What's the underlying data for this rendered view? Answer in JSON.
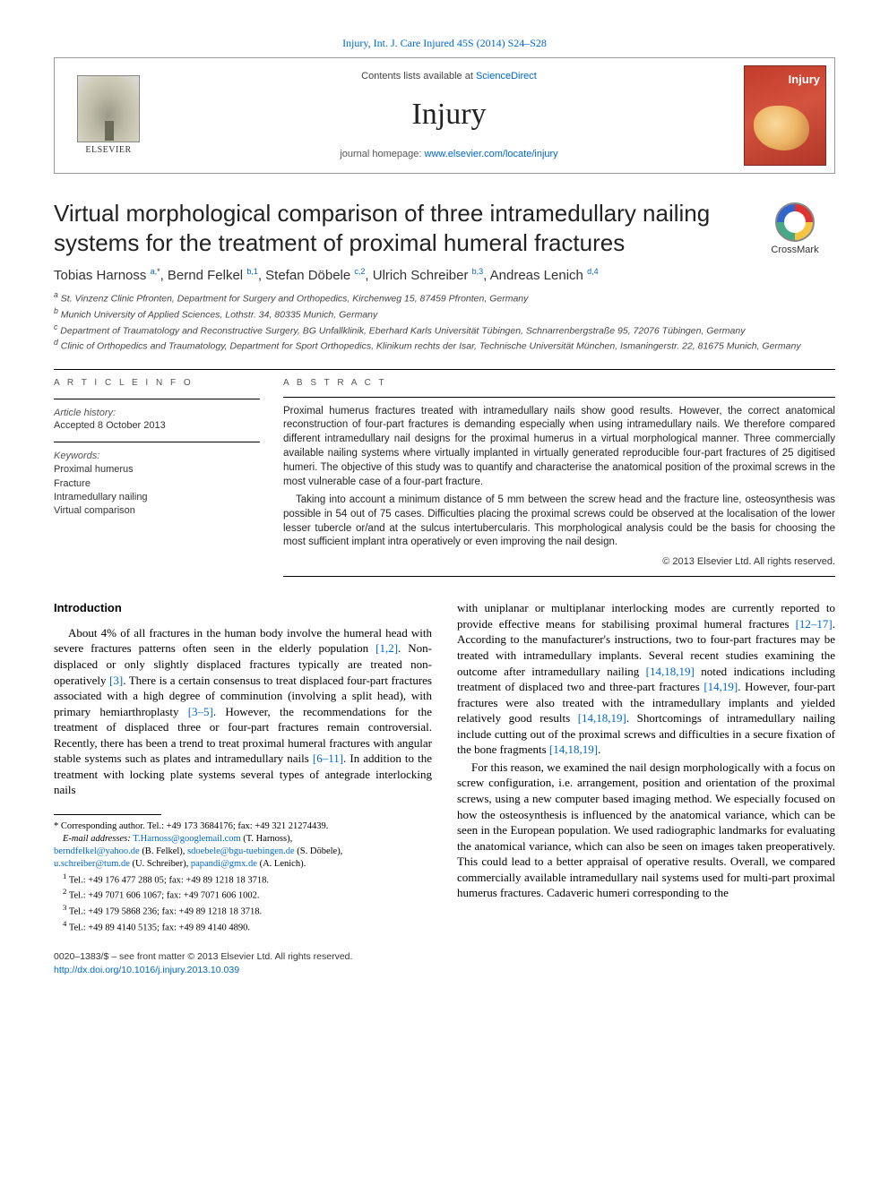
{
  "colors": {
    "link": "#0066cc",
    "text": "#000000",
    "muted": "#555555",
    "bg": "#ffffff",
    "cover_red": "#c43b2a",
    "rule": "#000000"
  },
  "typography": {
    "body_family": "Times New Roman",
    "ui_family": "Arial",
    "title_size_pt": 20,
    "author_size_pt": 11,
    "abstract_size_pt": 9,
    "body_size_pt": 10
  },
  "citation": "Injury, Int. J. Care Injured 45S (2014) S24–S28",
  "header": {
    "contents_prefix": "Contents lists available at ",
    "contents_link": "ScienceDirect",
    "journal": "Injury",
    "homepage_prefix": "journal homepage: ",
    "homepage_url": "www.elsevier.com/locate/injury",
    "publisher_label": "ELSEVIER",
    "cover_title": "Injury"
  },
  "crossmark": "CrossMark",
  "title": "Virtual morphological comparison of three intramedullary nailing systems for the treatment of proximal humeral fractures",
  "authors_html": "Tobias Harnoss <sup>a,</sup><sup class='black'>*</sup>, Bernd Felkel <sup>b,1</sup>, Stefan Döbele <sup>c,2</sup>, Ulrich Schreiber <sup>b,3</sup>, Andreas Lenich <sup>d,4</sup>",
  "affiliations": {
    "a": "St. Vinzenz Clinic Pfronten, Department for Surgery and Orthopedics, Kirchenweg 15, 87459 Pfronten, Germany",
    "b": "Munich University of Applied Sciences, Lothstr. 34, 80335 Munich, Germany",
    "c": "Department of Traumatology and Reconstructive Surgery, BG Unfallklinik, Eberhard Karls Universität Tübingen, Schnarrenbergstraße 95, 72076 Tübingen, Germany",
    "d": "Clinic of Orthopedics and Traumatology, Department for Sport Orthopedics, Klinikum rechts der Isar, Technische Universität München, Ismaningerstr. 22, 81675 Munich, Germany"
  },
  "article_info": {
    "heading": "A R T I C L E  I N F O",
    "history_label": "Article history:",
    "accepted": "Accepted 8 October 2013",
    "keywords_label": "Keywords:",
    "keywords": [
      "Proximal humerus",
      "Fracture",
      "Intramedullary nailing",
      "Virtual comparison"
    ]
  },
  "abstract": {
    "heading": "A B S T R A C T",
    "p1": "Proximal humerus fractures treated with intramedullary nails show good results. However, the correct anatomical reconstruction of four-part fractures is demanding especially when using intramedullary nails. We therefore compared different intramedullary nail designs for the proximal humerus in a virtual morphological manner. Three commercially available nailing systems where virtually implanted in virtually generated reproducible four-part fractures of 25 digitised humeri. The objective of this study was to quantify and characterise the anatomical position of the proximal screws in the most vulnerable case of a four-part fracture.",
    "p2": "Taking into account a minimum distance of 5 mm between the screw head and the fracture line, osteosynthesis was possible in 54 out of 75 cases. Difficulties placing the proximal screws could be observed at the localisation of the lower lesser tubercle or/and at the sulcus intertubercularis. This morphological analysis could be the basis for choosing the most sufficient implant intra operatively or even improving the nail design.",
    "copyright": "© 2013 Elsevier Ltd. All rights reserved."
  },
  "introduction": {
    "heading": "Introduction",
    "p1a": "About 4% of all fractures in the human body involve the humeral head with severe fractures patterns often seen in the elderly population ",
    "r1": "[1,2]",
    "p1b": ". Non-displaced or only slightly displaced fractures typically are treated non-operatively ",
    "r2": "[3]",
    "p1c": ". There is a certain consensus to treat displaced four-part fractures associated with a high degree of comminution (involving a split head), with primary hemiarthroplasty ",
    "r3": "[3–5]",
    "p1d": ". However, the recommendations for the treatment of displaced three or four-part fractures remain controversial. Recently, there has been a trend to treat proximal humeral fractures with angular stable systems such as plates and intramedullary nails ",
    "r4": "[6–11]",
    "p1e": ". In addition to the treatment with locking plate systems several types of antegrade interlocking nails",
    "p2a": "with uniplanar or multiplanar interlocking modes are currently reported to provide effective means for stabilising proximal humeral fractures ",
    "r5": "[12–17]",
    "p2b": ". According to the manufacturer's instructions, two to four-part fractures may be treated with intramedullary implants. Several recent studies examining the outcome after intramedullary nailing ",
    "r6": "[14,18,19]",
    "p2c": " noted indications including treatment of displaced two and three-part fractures ",
    "r7": "[14,19]",
    "p2d": ". However, four-part fractures were also treated with the intramedullary implants and yielded relatively good results ",
    "r8": "[14,18,19]",
    "p2e": ". Shortcomings of intramedullary nailing include cutting out of the proximal screws and difficulties in a secure fixation of the bone fragments ",
    "r9": "[14,18,19]",
    "p2f": ".",
    "p3": "For this reason, we examined the nail design morphologically with a focus on screw configuration, i.e. arrangement, position and orientation of the proximal screws, using a new computer based imaging method. We especially focused on how the osteosynthesis is influenced by the anatomical variance, which can be seen in the European population. We used radiographic landmarks for evaluating the anatomical variance, which can also be seen on images taken preoperatively. This could lead to a better appraisal of operative results. Overall, we compared commercially available intramedullary nail systems used for multi-part proximal humerus fractures. Cadaveric humeri corresponding to the"
  },
  "footnotes": {
    "corr": "* Corresponding author. Tel.: +49 173 3684176; fax: +49 321 21274439.",
    "email_label": "E-mail addresses: ",
    "emails": [
      {
        "addr": "T.Harnoss@googlemail.com",
        "who": "(T. Harnoss)"
      },
      {
        "addr": "berndfelkel@yahoo.de",
        "who": "(B. Felkel)"
      },
      {
        "addr": "sdoebele@bgu-tuebingen.de",
        "who": "(S. Döbele)"
      },
      {
        "addr": "u.schreiber@tum.de",
        "who": "(U. Schreiber)"
      },
      {
        "addr": "papandi@gmx.de",
        "who": "(A. Lenich)."
      }
    ],
    "n1": "Tel.: +49 176 477 288 05; fax: +49 89 1218 18 3718.",
    "n2": "Tel.: +49 7071 606 1067; fax: +49 7071 606 1002.",
    "n3": "Tel.: +49 179 5868 236; fax: +49 89 1218 18 3718.",
    "n4": "Tel.: +49 89 4140 5135; fax: +49 89 4140 4890."
  },
  "bottom": {
    "front": "0020–1383/$ – see front matter © 2013 Elsevier Ltd. All rights reserved.",
    "doi": "http://dx.doi.org/10.1016/j.injury.2013.10.039"
  }
}
